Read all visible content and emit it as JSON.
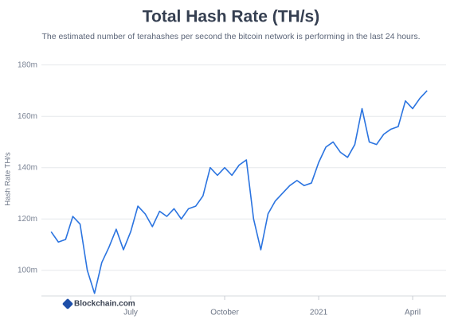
{
  "chart_data": {
    "type": "line",
    "title": "Total Hash Rate (TH/s)",
    "subtitle": "The estimated number of terahashes per second the bitcoin network is performing in the last 24 hours.",
    "y_label": "Hash Rate TH/s",
    "watermark": "Blockchain.com",
    "categories": [
      null,
      null,
      null,
      null,
      null,
      null,
      null,
      null,
      null,
      null,
      null,
      "July",
      null,
      null,
      null,
      null,
      null,
      null,
      null,
      null,
      null,
      null,
      null,
      null,
      "October",
      null,
      null,
      null,
      null,
      null,
      null,
      null,
      null,
      null,
      null,
      null,
      null,
      "2021",
      null,
      null,
      null,
      null,
      null,
      null,
      null,
      null,
      null,
      null,
      null,
      null,
      "April",
      null,
      null
    ],
    "series": [
      {
        "name": "Hash Rate",
        "color": "#2b74e0",
        "values": [
          115,
          111,
          112,
          121,
          118,
          100,
          91,
          103,
          109,
          116,
          108,
          115,
          125,
          122,
          117,
          123,
          121,
          124,
          120,
          124,
          125,
          129,
          140,
          137,
          140,
          137,
          141,
          143,
          120,
          108,
          122,
          127,
          130,
          133,
          135,
          133,
          134,
          142,
          148,
          150,
          146,
          144,
          149,
          163,
          150,
          149,
          153,
          155,
          156,
          166,
          163,
          167,
          170
        ]
      }
    ],
    "ylim": [
      90,
      183
    ],
    "yticks": [
      {
        "value": 100,
        "label": "100m"
      },
      {
        "value": 120,
        "label": "120m"
      },
      {
        "value": 140,
        "label": "140m"
      },
      {
        "value": 160,
        "label": "160m"
      },
      {
        "value": 180,
        "label": "180m"
      }
    ],
    "grid": true
  }
}
